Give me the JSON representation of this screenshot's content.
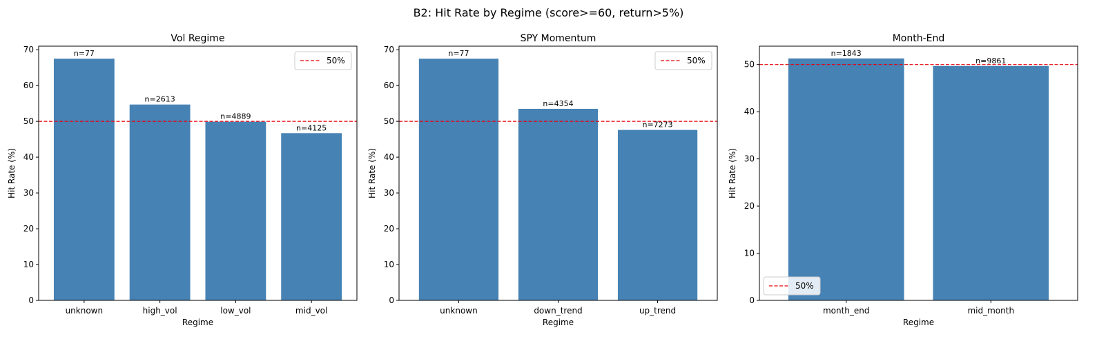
{
  "suptitle": "B2: Hit Rate by Regime (score>=60, return>5%)",
  "chart_data": [
    {
      "type": "bar",
      "title": "Vol Regime",
      "xlabel": "Regime",
      "ylabel": "Hit Rate (%)",
      "categories": [
        "unknown",
        "high_vol",
        "low_vol",
        "mid_vol"
      ],
      "values": [
        67.5,
        54.7,
        49.9,
        46.7
      ],
      "bar_labels": [
        "n=77",
        "n=2613",
        "n=4889",
        "n=4125"
      ],
      "ylim": [
        0,
        71
      ],
      "yticks": [
        0,
        10,
        20,
        30,
        40,
        50,
        60,
        70
      ],
      "reference_line": {
        "value": 50,
        "label": "50%",
        "color": "#e8000b",
        "style": "dashed"
      },
      "legend_position": "top-right",
      "bar_color": "#4682b4",
      "grid": false
    },
    {
      "type": "bar",
      "title": "SPY Momentum",
      "xlabel": "Regime",
      "ylabel": "Hit Rate (%)",
      "categories": [
        "unknown",
        "down_trend",
        "up_trend"
      ],
      "values": [
        67.5,
        53.5,
        47.6
      ],
      "bar_labels": [
        "n=77",
        "n=4354",
        "n=7273"
      ],
      "ylim": [
        0,
        71
      ],
      "yticks": [
        0,
        10,
        20,
        30,
        40,
        50,
        60,
        70
      ],
      "reference_line": {
        "value": 50,
        "label": "50%",
        "color": "#e8000b",
        "style": "dashed"
      },
      "legend_position": "top-right",
      "bar_color": "#4682b4",
      "grid": false
    },
    {
      "type": "bar",
      "title": "Month-End",
      "xlabel": "Regime",
      "ylabel": "Hit Rate (%)",
      "categories": [
        "month_end",
        "mid_month"
      ],
      "values": [
        51.3,
        49.7
      ],
      "bar_labels": [
        "n=1843",
        "n=9861"
      ],
      "ylim": [
        0,
        53.9
      ],
      "yticks": [
        0,
        10,
        20,
        30,
        40,
        50
      ],
      "reference_line": {
        "value": 50,
        "label": "50%",
        "color": "#e8000b",
        "style": "dashed"
      },
      "legend_position": "bottom-left",
      "bar_color": "#4682b4",
      "grid": false
    }
  ]
}
